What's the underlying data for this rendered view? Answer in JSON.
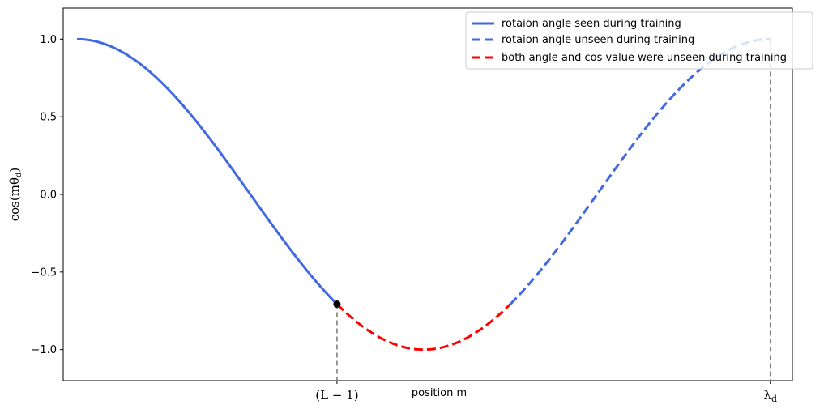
{
  "chart_data": {
    "type": "line",
    "xlabel": "position m",
    "ylabel": "cos(mθ_d)",
    "ylabel_display": "cos(mθ",
    "ylabel_sub": "d",
    "ylabel_close": ")",
    "xlim": [
      -0.125,
      6.4832
    ],
    "ylim": [
      -1.2,
      1.2
    ],
    "y_ticks": [
      -1.0,
      -0.5,
      0.0,
      0.5,
      1.0
    ],
    "y_tick_labels": [
      "−1.0",
      "−0.5",
      "0.0",
      "0.5",
      "1.0"
    ],
    "x_ticks": [
      {
        "value": 2.3562,
        "label_main": "(L − 1)",
        "label_sub": ""
      },
      {
        "value": 6.2832,
        "label_main": "λ",
        "label_sub": "d"
      }
    ],
    "grid": false,
    "legend_position": "top-right",
    "series": [
      {
        "name": "rotaion angle seen during training",
        "color": "#4169e1",
        "style": "solid",
        "function": "cos",
        "x_range": [
          0,
          2.3562
        ]
      },
      {
        "name": "rotaion angle unseen during training",
        "color": "#4169e1",
        "style": "dashed",
        "function": "cos",
        "x_range": [
          3.927,
          6.2832
        ]
      },
      {
        "name": "both angle and cos value were unseen during training",
        "color": "#ff0000",
        "style": "dashed",
        "function": "cos",
        "x_range": [
          2.3562,
          3.927
        ]
      }
    ],
    "marker": {
      "x": 2.3562,
      "y": -0.7071,
      "color": "#000000"
    },
    "vlines": [
      {
        "x": 2.3562,
        "y_top": -0.7071,
        "color": "#808080",
        "style": "dashed"
      },
      {
        "x": 6.2832,
        "y_top": 1.0,
        "color": "#808080",
        "style": "dashed"
      }
    ]
  }
}
